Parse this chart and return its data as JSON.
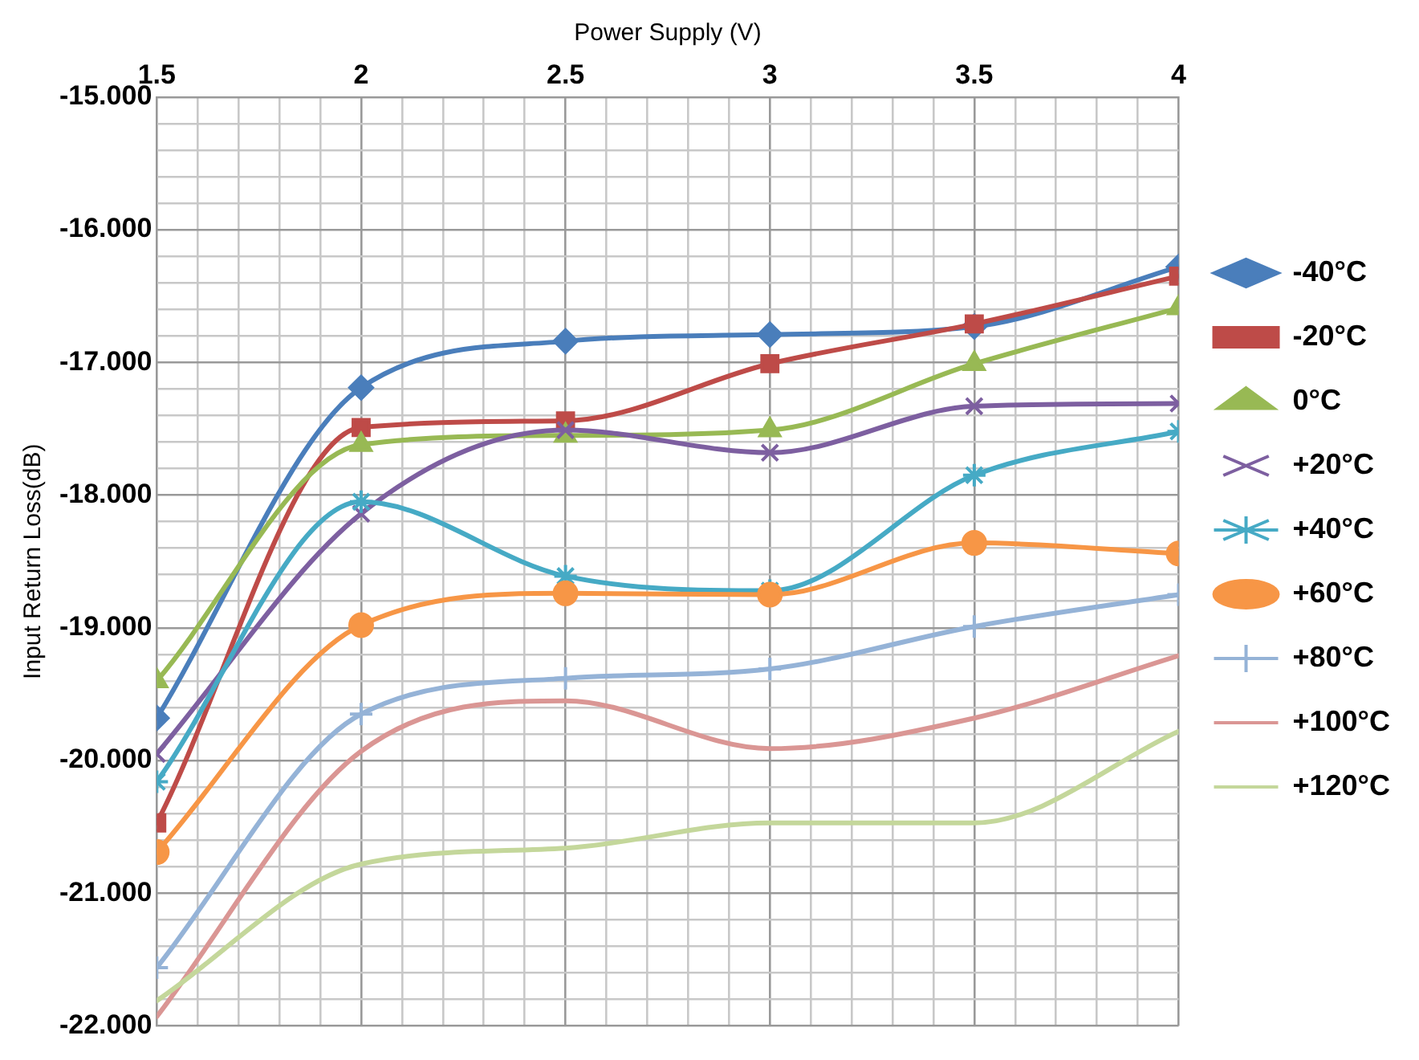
{
  "chart_data": {
    "type": "line",
    "xlabel": "Power Supply (V)",
    "ylabel": "Input Return Loss(dB)",
    "x": [
      1.5,
      2,
      2.5,
      3,
      3.5,
      4
    ],
    "series": [
      {
        "name": "-40°C",
        "color": "#4a7ebb",
        "marker": "diamond",
        "values": [
          -19.68,
          -17.19,
          -16.84,
          -16.79,
          -16.73,
          -16.28
        ]
      },
      {
        "name": "-20°C",
        "color": "#be4b48",
        "marker": "square",
        "values": [
          -20.47,
          -17.49,
          -17.44,
          -17.01,
          -16.71,
          -16.35
        ]
      },
      {
        "name": "0°C",
        "color": "#98b954",
        "marker": "triangle",
        "values": [
          -19.4,
          -17.62,
          -17.55,
          -17.51,
          -17.01,
          -16.59
        ]
      },
      {
        "name": "+20°C",
        "color": "#7d5fa0",
        "marker": "x",
        "values": [
          -19.95,
          -18.14,
          -17.51,
          -17.68,
          -17.33,
          -17.31
        ]
      },
      {
        "name": "+40°C",
        "color": "#46aac5",
        "marker": "cross",
        "values": [
          -20.16,
          -18.05,
          -18.61,
          -18.72,
          -17.85,
          -17.52
        ]
      },
      {
        "name": "+60°C",
        "color": "#f79646",
        "marker": "circle",
        "values": [
          -20.69,
          -18.98,
          -18.74,
          -18.75,
          -18.36,
          -18.44
        ]
      },
      {
        "name": "+80°C",
        "color": "#95b3d7",
        "marker": "plus",
        "values": [
          -21.56,
          -19.65,
          -19.38,
          -19.31,
          -18.99,
          -18.75
        ]
      },
      {
        "name": "+100°C",
        "color": "#da9694",
        "marker": "none",
        "values": [
          -21.93,
          -19.93,
          -19.55,
          -19.91,
          -19.68,
          -19.21
        ]
      },
      {
        "name": "+120°C",
        "color": "#c4d79b",
        "marker": "none",
        "values": [
          -21.81,
          -20.78,
          -20.66,
          -20.47,
          -20.47,
          -19.78
        ]
      }
    ],
    "xlim": [
      1.5,
      4
    ],
    "xticks": [
      1.5,
      {
        "value": 1.6,
        "label": null
      },
      {
        "value": 1.7,
        "label": null
      },
      {
        "value": 1.8,
        "label": null
      },
      {
        "value": 1.9,
        "label": null
      },
      2,
      {
        "value": 2.1,
        "label": null
      },
      {
        "value": 2.2,
        "label": null
      },
      {
        "value": 2.3,
        "label": null
      },
      {
        "value": 2.4,
        "label": null
      },
      2.5,
      {
        "value": 2.6,
        "label": null
      },
      {
        "value": 2.7,
        "label": null
      },
      {
        "value": 2.8,
        "label": null
      },
      {
        "value": 2.9,
        "label": null
      },
      3,
      {
        "value": 3.1,
        "label": null
      },
      {
        "value": 3.2,
        "label": null
      },
      {
        "value": 3.3,
        "label": null
      },
      {
        "value": 3.4,
        "label": null
      },
      3.5,
      {
        "value": 3.6,
        "label": null
      },
      {
        "value": 3.7,
        "label": null
      },
      {
        "value": 3.8,
        "label": null
      },
      {
        "value": 3.9,
        "label": null
      },
      4
    ],
    "ylim": [
      -22,
      -15
    ],
    "yticks": [
      {
        "value": -22,
        "label": "-22.000"
      },
      {
        "value": -21.8,
        "label": null
      },
      {
        "value": -21.6,
        "label": null
      },
      {
        "value": -21.4,
        "label": null
      },
      {
        "value": -21.2,
        "label": null
      },
      {
        "value": -21,
        "label": "-21.000"
      },
      {
        "value": -20.8,
        "label": null
      },
      {
        "value": -20.6,
        "label": null
      },
      {
        "value": -20.4,
        "label": null
      },
      {
        "value": -20.2,
        "label": null
      },
      {
        "value": -20,
        "label": "-20.000"
      },
      {
        "value": -19.8,
        "label": null
      },
      {
        "value": -19.6,
        "label": null
      },
      {
        "value": -19.4,
        "label": null
      },
      {
        "value": -19.2,
        "label": null
      },
      {
        "value": -19,
        "label": "-19.000"
      },
      {
        "value": -18.8,
        "label": null
      },
      {
        "value": -18.6,
        "label": null
      },
      {
        "value": -18.4,
        "label": null
      },
      {
        "value": -18.2,
        "label": null
      },
      {
        "value": -18,
        "label": "-18.000"
      },
      {
        "value": -17.8,
        "label": null
      },
      {
        "value": -17.6,
        "label": null
      },
      {
        "value": -17.4,
        "label": null
      },
      {
        "value": -17.2,
        "label": null
      },
      {
        "value": -17,
        "label": "-17.000"
      },
      {
        "value": -16.8,
        "label": null
      },
      {
        "value": -16.6,
        "label": null
      },
      {
        "value": -16.4,
        "label": null
      },
      {
        "value": -16.2,
        "label": null
      },
      {
        "value": -16,
        "label": "-16.000"
      },
      {
        "value": -15.8,
        "label": null
      },
      {
        "value": -15.6,
        "label": null
      },
      {
        "value": -15.4,
        "label": null
      },
      {
        "value": -15.2,
        "label": null
      },
      {
        "value": -15,
        "label": "-15.000"
      }
    ],
    "grid": true,
    "legend": "right",
    "line_style": "solid"
  }
}
